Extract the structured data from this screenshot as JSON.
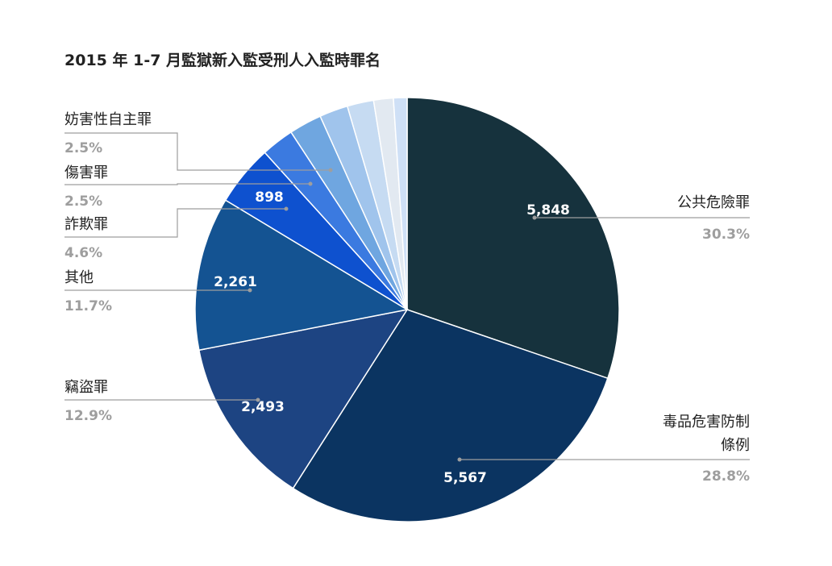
{
  "chart_data": {
    "type": "pie",
    "title": "2015 年 1-7 月監獄新入監受刑人入監時罪名",
    "slices": [
      {
        "name": "公共危險罪",
        "value": 5848,
        "value_label": "5,848",
        "percent_label": "30.3%",
        "color": "#16323d"
      },
      {
        "name": "毒品危害防制條例",
        "value": 5567,
        "value_label": "5,567",
        "percent_label": "28.8%",
        "color": "#0b3461"
      },
      {
        "name": "竊盜罪",
        "value": 2493,
        "value_label": "2,493",
        "percent_label": "12.9%",
        "color": "#1d4482"
      },
      {
        "name": "其他",
        "value": 2261,
        "value_label": "2,261",
        "percent_label": "11.7%",
        "color": "#145392"
      },
      {
        "name": "詐欺罪",
        "value": 898,
        "value_label": "898",
        "percent_label": "4.6%",
        "color": "#0e51cf"
      },
      {
        "name": "傷害罪",
        "value": 483,
        "percent_label": "2.5%",
        "color": "#3b7ae0"
      },
      {
        "name": "妨害性自主罪",
        "value": 483,
        "percent_label": "2.5%",
        "color": "#6fa6e0"
      },
      {
        "value": 420,
        "color": "#a0c4ec"
      },
      {
        "value": 390,
        "color": "#c6dbf2"
      },
      {
        "value": 290,
        "color": "#e2e9f1"
      },
      {
        "value": 200,
        "color": "#cfe0f6"
      }
    ]
  },
  "labels": {
    "public_danger_name": "公共危險罪",
    "public_danger_pct": "30.3%",
    "drug_name_line1": "毒品危害防制",
    "drug_name_line2": "條例",
    "drug_pct": "28.8%",
    "theft_name": "竊盜罪",
    "theft_pct": "12.9%",
    "other_name": "其他",
    "other_pct": "11.7%",
    "fraud_name": "詐欺罪",
    "fraud_pct": "4.6%",
    "injury_name": "傷害罪",
    "injury_pct": "2.5%",
    "sexual_name": "妨害性自主罪",
    "sexual_pct": "2.5%"
  }
}
